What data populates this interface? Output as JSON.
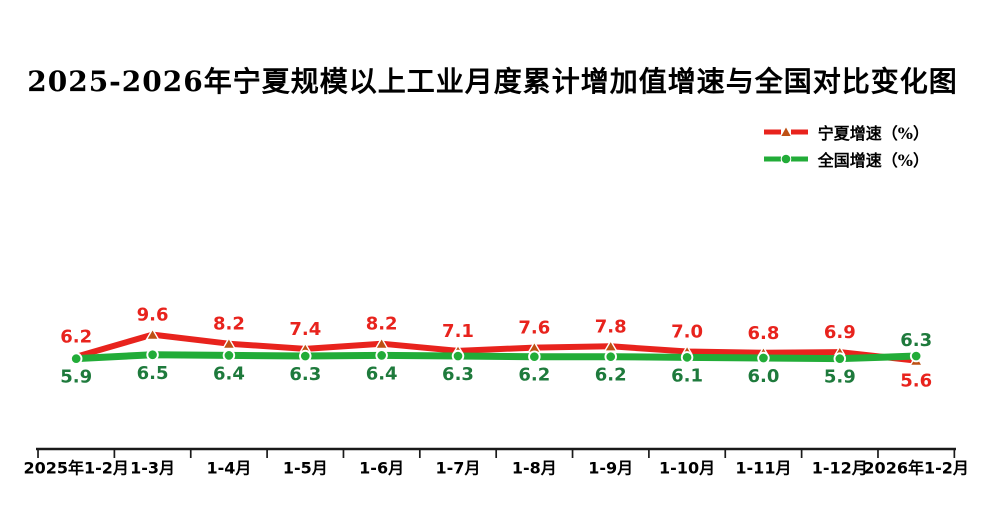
{
  "title": "2025-2026年宁夏规模以上工业月度累计增加值增速与全国对比变化图",
  "legend": {
    "items": [
      {
        "label": "宁夏增速（%）",
        "color": "#E8231D",
        "marker": "triangle",
        "marker_color": "#BE5014"
      },
      {
        "label": "全国增速（%）",
        "color": "#22AC38",
        "marker": "circle",
        "marker_color": "#22AC38"
      }
    ]
  },
  "chart_data": {
    "type": "line",
    "title": "2025-2026年宁夏规模以上工业月度累计增加值增速与全国对比变化图",
    "categories": [
      "2025年1-2月",
      "1-3月",
      "1-4月",
      "1-5月",
      "1-6月",
      "1-7月",
      "1-8月",
      "1-9月",
      "1-10月",
      "1-11月",
      "1-12月",
      "2026年1-2月"
    ],
    "series": [
      {
        "name": "宁夏增速（%）",
        "values": [
          6.2,
          9.6,
          8.2,
          7.4,
          8.2,
          7.1,
          7.6,
          7.8,
          7.0,
          6.8,
          6.9,
          5.6
        ],
        "line_color": "#E8231D",
        "label_color": "#E8231D",
        "marker": "triangle",
        "marker_color": "#BE5014"
      },
      {
        "name": "全国增速（%）",
        "values": [
          5.9,
          6.5,
          6.4,
          6.3,
          6.4,
          6.3,
          6.2,
          6.2,
          6.1,
          6.0,
          5.9,
          6.3
        ],
        "line_color": "#22AC38",
        "label_color": "#1E7A3C",
        "marker": "circle",
        "marker_color": "#22AC38"
      }
    ],
    "xlabel": "",
    "ylabel": "",
    "y_axis_visible": false,
    "grid": false,
    "data_labels": true,
    "legend_position": "top-right",
    "axis_color": "#1A1A1A"
  }
}
